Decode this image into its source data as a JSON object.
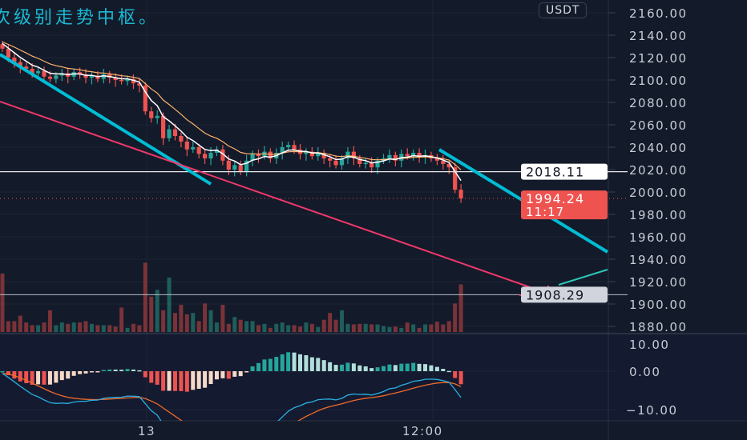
{
  "annotation": {
    "text": "次级别走势中枢。",
    "color": "#1ab8d2"
  },
  "currency_badge": "USDT",
  "colors": {
    "background": "#131a2a",
    "bull": "#26a69a",
    "bear": "#ef5350",
    "trendline": "#00bcd4",
    "pink_line": "#f0386b",
    "ma_fast": "#ffffff",
    "ma_slow": "#ffb36b",
    "macd_line": "#2ab0e0",
    "signal_line": "#f26a2a"
  },
  "chart_data": [
    {
      "type": "candlestick",
      "title": "",
      "ylim": [
        1875,
        2165
      ],
      "grid": true,
      "y_ticks": [
        "2160.00",
        "2140.00",
        "2120.00",
        "2100.00",
        "2080.00",
        "2060.00",
        "2040.00",
        "2020.00",
        "2000.00",
        "1980.00",
        "1960.00",
        "1940.00",
        "1920.00",
        "1900.00",
        "1880.00"
      ],
      "x_ticks": [
        "13",
        "12:00"
      ],
      "close": [
        2128,
        2120,
        2116,
        2112,
        2110,
        2106,
        2108,
        2103,
        2101,
        2104,
        2106,
        2103,
        2107,
        2105,
        2102,
        2104,
        2101,
        2105,
        2102,
        2100,
        2099,
        2101,
        2097,
        2095,
        2072,
        2066,
        2068,
        2048,
        2056,
        2050,
        2045,
        2038,
        2040,
        2034,
        2030,
        2035,
        2038,
        2028,
        2020,
        2024,
        2018,
        2028,
        2034,
        2032,
        2036,
        2030,
        2035,
        2040,
        2042,
        2038,
        2034,
        2036,
        2032,
        2035,
        2030,
        2028,
        2024,
        2030,
        2036,
        2030,
        2025,
        2026,
        2022,
        2028,
        2030,
        2033,
        2028,
        2034,
        2032,
        2035,
        2031,
        2033,
        2030,
        2028,
        2025,
        2022,
        2002,
        1994.24
      ],
      "volume": [
        215,
        40,
        40,
        60,
        35,
        25,
        25,
        35,
        80,
        25,
        35,
        30,
        35,
        35,
        40,
        30,
        25,
        25,
        25,
        20,
        90,
        15,
        30,
        25,
        255,
        130,
        155,
        80,
        200,
        70,
        100,
        65,
        70,
        40,
        105,
        80,
        35,
        100,
        30,
        55,
        45,
        40,
        40,
        25,
        30,
        15,
        30,
        35,
        25,
        25,
        20,
        35,
        30,
        18,
        45,
        70,
        45,
        80,
        30,
        28,
        30,
        30,
        28,
        28,
        22,
        18,
        20,
        15,
        35,
        28,
        15,
        28,
        28,
        38,
        28,
        40,
        105,
        175
      ],
      "price_lines": [
        {
          "label": "2018.11",
          "value": 2018.11,
          "style": "solid-white"
        },
        {
          "label": "1994.24",
          "sublabel": "11:17",
          "value": 1994.24,
          "style": "dotted-red"
        },
        {
          "label": "1908.29",
          "value": 1908.29,
          "style": "solid-gray"
        }
      ]
    },
    {
      "type": "macd",
      "ylim": [
        -12.5,
        10
      ],
      "y_ticks": [
        "10.00",
        "0.00",
        "−10.00"
      ]
    }
  ]
}
